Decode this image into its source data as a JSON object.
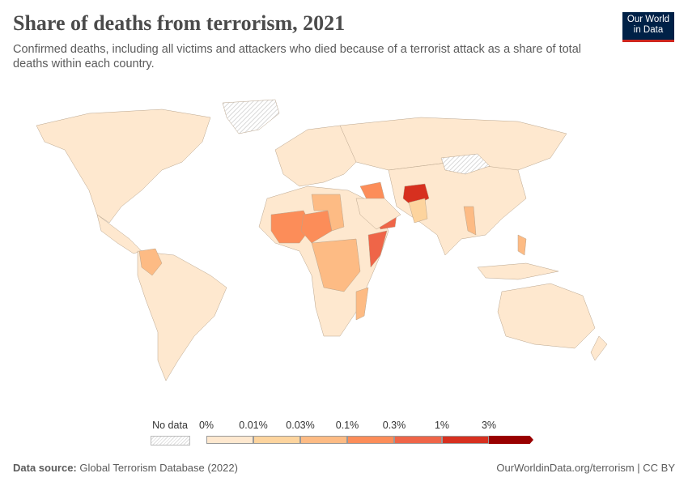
{
  "title": "Share of deaths from terrorism, 2021",
  "subtitle": "Confirmed deaths, including all victims and attackers who died because of a terrorist attack as a share of total deaths within each country.",
  "logo": {
    "line1": "Our World",
    "line2": "in Data"
  },
  "legend": {
    "no_data_label": "No data",
    "ticks": [
      "0%",
      "0.01%",
      "0.03%",
      "0.1%",
      "0.3%",
      "1%",
      "3%"
    ],
    "bin_colors": [
      "#fee8cf",
      "#fdd49e",
      "#fdbb84",
      "#fc8d59",
      "#ef6548",
      "#d7301f",
      "#990000"
    ],
    "no_data_color": "#e0e0e0"
  },
  "footer": {
    "source_label": "Data source:",
    "source": "Global Terrorism Database (2022)",
    "url": "OurWorldinData.org/terrorism | CC BY"
  }
}
